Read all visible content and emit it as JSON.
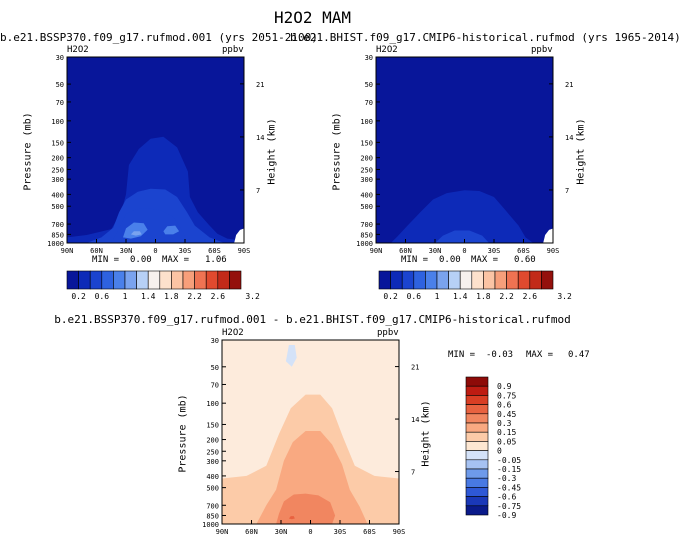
{
  "figure": {
    "title": "H2O2 MAM"
  },
  "colors": {
    "top_scale": [
      "#08169a",
      "#0d2ab8",
      "#1b44cf",
      "#2e62e0",
      "#4a80ea",
      "#7aa3ef",
      "#b7d0f6",
      "#f7f1ee",
      "#fde1cc",
      "#fbc4a4",
      "#f79f7a",
      "#ef7352",
      "#e04a2e",
      "#c22a19",
      "#94100c"
    ],
    "diff_scale": [
      "#0a1a8a",
      "#1a38b8",
      "#2e58d6",
      "#4879e3",
      "#6e9aea",
      "#a6c2f2",
      "#d4e2f8",
      "#fde7d2",
      "#fccba8",
      "#f9a981",
      "#f18660",
      "#e86240",
      "#d93e24",
      "#be1c12",
      "#8e0b08"
    ]
  },
  "chart_data": [
    {
      "id": "panel-1",
      "type": "heatmap",
      "subtitle": "b.e21.BSSP370.f09_g17.rufmod.001 (yrs 2051-2100)",
      "corner_left": "H2O2",
      "corner_right": "ppbv",
      "xlabel": "",
      "ylabel": "Pressure (mb)",
      "y2label": "Height (km)",
      "x_ticks": [
        "90N",
        "60N",
        "30N",
        "0",
        "30S",
        "60S",
        "90S"
      ],
      "y_ticks": [
        "30",
        "50",
        "70",
        "100",
        "150",
        "200",
        "250",
        "300",
        "400",
        "500",
        "700",
        "850",
        "1000"
      ],
      "y_ticks_values": [
        30,
        50,
        70,
        100,
        150,
        200,
        250,
        300,
        400,
        500,
        700,
        850,
        1000
      ],
      "y2_ticks": [
        "7",
        "14",
        "21"
      ],
      "y2_ticks_values": [
        7,
        14,
        21
      ],
      "ylim": [
        30,
        1000
      ],
      "min_label": "MIN =",
      "min_value": "0.00",
      "max_label": "MAX =",
      "max_value": "1.06",
      "colorbar_ticks": [
        "0.2",
        "0.6",
        "1",
        "1.4",
        "1.8",
        "2.2",
        "2.6",
        "3.2"
      ],
      "regions": [
        {
          "name": "level-1",
          "value": 0.2,
          "points": [
            [
              -90,
              1000
            ],
            [
              -90,
              900
            ],
            [
              -70,
              860
            ],
            [
              -45,
              770
            ],
            [
              -35,
              560
            ],
            [
              -30,
              400
            ],
            [
              -27,
              230
            ],
            [
              -17,
              170
            ],
            [
              -5,
              140
            ],
            [
              8,
              135
            ],
            [
              22,
              165
            ],
            [
              33,
              260
            ],
            [
              35,
              420
            ],
            [
              43,
              560
            ],
            [
              55,
              720
            ],
            [
              63,
              840
            ],
            [
              73,
              920
            ],
            [
              90,
              960
            ],
            [
              90,
              1000
            ]
          ]
        },
        {
          "name": "level-2",
          "value": 0.4,
          "points": [
            [
              -70,
              1000
            ],
            [
              -55,
              900
            ],
            [
              -43,
              750
            ],
            [
              -37,
              560
            ],
            [
              -30,
              440
            ],
            [
              -18,
              380
            ],
            [
              -5,
              360
            ],
            [
              10,
              365
            ],
            [
              22,
              420
            ],
            [
              32,
              560
            ],
            [
              40,
              720
            ],
            [
              55,
              900
            ],
            [
              70,
              1000
            ]
          ]
        },
        {
          "name": "level-3",
          "value": 0.6,
          "points": [
            [
              -45,
              990
            ],
            [
              -40,
              850
            ],
            [
              -35,
              700
            ],
            [
              -30,
              580
            ],
            [
              -20,
              530
            ],
            [
              -8,
              520
            ],
            [
              5,
              540
            ],
            [
              18,
              610
            ],
            [
              25,
              740
            ],
            [
              30,
              880
            ],
            [
              25,
              1000
            ],
            [
              -20,
              1000
            ]
          ]
        },
        {
          "name": "level-4",
          "value": 0.8,
          "points": [
            [
              -33,
              900
            ],
            [
              -30,
              760
            ],
            [
              -22,
              680
            ],
            [
              -12,
              690
            ],
            [
              -8,
              780
            ],
            [
              -15,
              880
            ],
            [
              -25,
              920
            ]
          ]
        },
        {
          "name": "level-4b",
          "value": 0.8,
          "points": [
            [
              8,
              800
            ],
            [
              12,
              730
            ],
            [
              20,
              720
            ],
            [
              24,
              800
            ],
            [
              18,
              850
            ],
            [
              10,
              850
            ]
          ]
        },
        {
          "name": "level-5",
          "value": 1.0,
          "points": [
            [
              -25,
              850
            ],
            [
              -22,
              800
            ],
            [
              -16,
              800
            ],
            [
              -14,
              850
            ],
            [
              -20,
              870
            ]
          ]
        }
      ]
    },
    {
      "id": "panel-2",
      "type": "heatmap",
      "subtitle": "b.e21.BHIST.f09_g17.CMIP6-historical.rufmod (yrs 1965-2014)",
      "corner_left": "H2O2",
      "corner_right": "ppbv",
      "xlabel": "",
      "ylabel": "Pressure (mb)",
      "y2label": "Height (km)",
      "x_ticks": [
        "90N",
        "60N",
        "30N",
        "0",
        "30S",
        "60S",
        "90S"
      ],
      "y_ticks": [
        "30",
        "50",
        "70",
        "100",
        "150",
        "200",
        "250",
        "300",
        "400",
        "500",
        "700",
        "850",
        "1000"
      ],
      "y_ticks_values": [
        30,
        50,
        70,
        100,
        150,
        200,
        250,
        300,
        400,
        500,
        700,
        850,
        1000
      ],
      "y2_ticks": [
        "7",
        "14",
        "21"
      ],
      "y2_ticks_values": [
        7,
        14,
        21
      ],
      "ylim": [
        30,
        1000
      ],
      "min_label": "MIN =",
      "min_value": "0.00",
      "max_label": "MAX =",
      "max_value": "0.60",
      "colorbar_ticks": [
        "0.2",
        "0.6",
        "1",
        "1.4",
        "1.8",
        "2.2",
        "2.6",
        "3.2"
      ],
      "regions": [
        {
          "name": "level-1",
          "value": 0.2,
          "points": [
            [
              -75,
              1000
            ],
            [
              -68,
              880
            ],
            [
              -58,
              720
            ],
            [
              -45,
              560
            ],
            [
              -32,
              440
            ],
            [
              -18,
              390
            ],
            [
              0,
              370
            ],
            [
              15,
              375
            ],
            [
              30,
              420
            ],
            [
              40,
              520
            ],
            [
              55,
              720
            ],
            [
              62,
              900
            ],
            [
              70,
              1000
            ]
          ]
        },
        {
          "name": "level-2",
          "value": 0.4,
          "points": [
            [
              -30,
              1000
            ],
            [
              -22,
              870
            ],
            [
              -10,
              790
            ],
            [
              5,
              790
            ],
            [
              18,
              870
            ],
            [
              25,
              1000
            ]
          ]
        }
      ]
    },
    {
      "id": "panel-3",
      "type": "heatmap",
      "subtitle": "b.e21.BSSP370.f09_g17.rufmod.001 - b.e21.BHIST.f09_g17.CMIP6-historical.rufmod",
      "corner_left": "H2O2",
      "corner_right": "ppbv",
      "xlabel": "",
      "ylabel": "Pressure (mb)",
      "y2label": "Height (km)",
      "x_ticks": [
        "90N",
        "60N",
        "30N",
        "0",
        "30S",
        "60S",
        "90S"
      ],
      "y_ticks": [
        "30",
        "50",
        "70",
        "100",
        "150",
        "200",
        "250",
        "300",
        "400",
        "500",
        "700",
        "850",
        "1000"
      ],
      "y_ticks_values": [
        30,
        50,
        70,
        100,
        150,
        200,
        250,
        300,
        400,
        500,
        700,
        850,
        1000
      ],
      "y2_ticks": [
        "7",
        "14",
        "21"
      ],
      "y2_ticks_values": [
        7,
        14,
        21
      ],
      "ylim": [
        30,
        1000
      ],
      "min_label": "MIN =",
      "min_value": "-0.03",
      "max_label": "MAX =",
      "max_value": "0.47",
      "colorbar_ticks": [
        "0.9",
        "0.75",
        "0.6",
        "0.45",
        "0.3",
        "0.15",
        "0.05",
        "0",
        "-0.05",
        "-0.15",
        "-0.3",
        "-0.45",
        "-0.6",
        "-0.75",
        "-0.9"
      ],
      "regions": [
        {
          "name": "level-0.1",
          "value": 0.1,
          "points": [
            [
              -90,
              1000
            ],
            [
              -90,
              420
            ],
            [
              -65,
              400
            ],
            [
              -45,
              330
            ],
            [
              -32,
              180
            ],
            [
              -20,
              110
            ],
            [
              -5,
              85
            ],
            [
              10,
              85
            ],
            [
              22,
              110
            ],
            [
              33,
              190
            ],
            [
              45,
              330
            ],
            [
              65,
              400
            ],
            [
              90,
              420
            ],
            [
              90,
              1000
            ]
          ]
        },
        {
          "name": "level-0.2",
          "value": 0.2,
          "points": [
            [
              -55,
              1000
            ],
            [
              -45,
              700
            ],
            [
              -35,
              520
            ],
            [
              -27,
              300
            ],
            [
              -18,
              210
            ],
            [
              -5,
              170
            ],
            [
              10,
              170
            ],
            [
              22,
              220
            ],
            [
              32,
              320
            ],
            [
              40,
              520
            ],
            [
              50,
              720
            ],
            [
              58,
              1000
            ]
          ]
        },
        {
          "name": "level-0.3",
          "value": 0.3,
          "points": [
            [
              -35,
              1000
            ],
            [
              -32,
              820
            ],
            [
              -27,
              650
            ],
            [
              -17,
              570
            ],
            [
              -5,
              560
            ],
            [
              8,
              580
            ],
            [
              20,
              660
            ],
            [
              25,
              850
            ],
            [
              22,
              1000
            ]
          ]
        },
        {
          "name": "level-0.4",
          "value": 0.4,
          "points": [
            [
              -29,
              970
            ],
            [
              -27,
              830
            ],
            [
              -22,
              740
            ],
            [
              -16,
              740
            ],
            [
              -12,
              830
            ],
            [
              -16,
              960
            ],
            [
              -23,
              990
            ]
          ]
        },
        {
          "name": "level-0.4b",
          "value": 0.4,
          "points": [
            [
              8,
              920
            ],
            [
              10,
              820
            ],
            [
              14,
              800
            ],
            [
              17,
              850
            ],
            [
              16,
              940
            ],
            [
              12,
              960
            ]
          ]
        },
        {
          "name": "level-0.47",
          "value": 0.47,
          "points": [
            [
              -22,
              900
            ],
            [
              -20,
              860
            ],
            [
              -17,
              860
            ],
            [
              -16,
              900
            ],
            [
              -19,
              915
            ]
          ]
        },
        {
          "name": "level-neg",
          "value": -0.03,
          "points": [
            [
              -25,
              45
            ],
            [
              -22,
              33
            ],
            [
              -16,
              33
            ],
            [
              -14,
              42
            ],
            [
              -19,
              50
            ]
          ]
        }
      ]
    }
  ]
}
